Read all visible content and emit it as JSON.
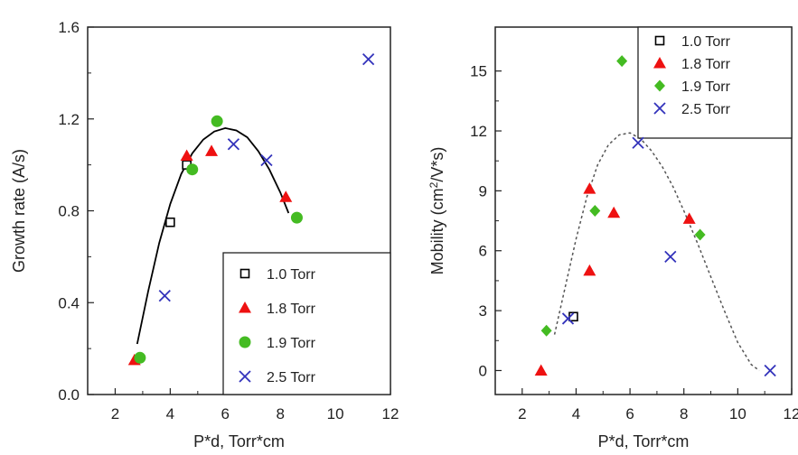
{
  "chart_data": [
    {
      "type": "scatter",
      "title": "",
      "xlabel": "P*d, Torr*cm",
      "ylabel": "Growth rate (A/s)",
      "xlim": [
        1,
        12
      ],
      "ylim": [
        0,
        1.6
      ],
      "xticks": [
        "2",
        "4",
        "6",
        "8",
        "10",
        "12"
      ],
      "yticks": [
        "0.0",
        "0.4",
        "0.8",
        "1.2",
        "1.6"
      ],
      "legend_position": "bottom-right",
      "series": [
        {
          "name": "1.0 Torr",
          "marker": "open-square",
          "color": "#000000",
          "x": [
            4.0,
            4.6
          ],
          "y": [
            0.75,
            1.0
          ]
        },
        {
          "name": "1.8 Torr",
          "marker": "triangle",
          "color": "#ee1111",
          "x": [
            2.7,
            4.6,
            5.5,
            8.2
          ],
          "y": [
            0.15,
            1.04,
            1.06,
            0.86
          ]
        },
        {
          "name": "1.9 Torr",
          "marker": "circle",
          "color": "#44bb22",
          "x": [
            2.9,
            4.8,
            5.7,
            8.6
          ],
          "y": [
            0.16,
            0.98,
            1.19,
            0.77
          ]
        },
        {
          "name": "2.5 Torr",
          "marker": "x",
          "color": "#3333bb",
          "x": [
            3.8,
            6.3,
            7.5,
            11.2
          ],
          "y": [
            0.43,
            1.09,
            1.02,
            1.46
          ]
        }
      ],
      "fit_curve": {
        "style": "solid",
        "color": "#000000",
        "x": [
          2.8,
          3.2,
          3.6,
          4.0,
          4.4,
          4.8,
          5.2,
          5.6,
          6.0,
          6.4,
          6.8,
          7.2,
          7.6,
          8.0,
          8.3
        ],
        "y": [
          0.22,
          0.45,
          0.66,
          0.83,
          0.96,
          1.05,
          1.11,
          1.145,
          1.16,
          1.15,
          1.12,
          1.06,
          0.98,
          0.88,
          0.79
        ]
      }
    },
    {
      "type": "scatter",
      "title": "",
      "xlabel": "P*d, Torr*cm",
      "ylabel": "Mobility (cm2/V*s)",
      "xlim": [
        1,
        12
      ],
      "ylim": [
        -1.2,
        17.2
      ],
      "xticks": [
        "2",
        "4",
        "6",
        "8",
        "10",
        "12"
      ],
      "yticks": [
        "0",
        "3",
        "6",
        "9",
        "12",
        "15"
      ],
      "legend_position": "top-right",
      "series": [
        {
          "name": "1.0 Torr",
          "marker": "open-square",
          "color": "#000000",
          "x": [
            3.9
          ],
          "y": [
            2.7
          ]
        },
        {
          "name": "1.8 Torr",
          "marker": "triangle",
          "color": "#ee1111",
          "x": [
            2.7,
            4.5,
            4.5,
            5.4,
            8.2
          ],
          "y": [
            0.0,
            5.0,
            9.1,
            7.9,
            7.6
          ]
        },
        {
          "name": "1.9 Torr",
          "marker": "diamond",
          "color": "#44bb22",
          "x": [
            2.9,
            4.7,
            5.7,
            8.6
          ],
          "y": [
            2.0,
            8.0,
            15.5,
            6.8
          ]
        },
        {
          "name": "2.5 Torr",
          "marker": "x",
          "color": "#3333bb",
          "x": [
            3.7,
            6.3,
            7.5,
            11.2
          ],
          "y": [
            2.6,
            11.4,
            5.7,
            0.0
          ]
        }
      ],
      "fit_curve": {
        "style": "dashed",
        "color": "#555555",
        "x": [
          3.2,
          3.6,
          4.0,
          4.4,
          4.8,
          5.2,
          5.6,
          6.0,
          6.4,
          6.8,
          7.2,
          7.6,
          8.0,
          8.5,
          9.0,
          9.5,
          10.0,
          10.5,
          10.8
        ],
        "y": [
          1.8,
          4.2,
          6.6,
          8.7,
          10.3,
          11.3,
          11.8,
          11.9,
          11.6,
          11.0,
          10.2,
          9.2,
          8.0,
          6.4,
          4.7,
          3.0,
          1.4,
          0.3,
          0.0
        ]
      }
    }
  ]
}
